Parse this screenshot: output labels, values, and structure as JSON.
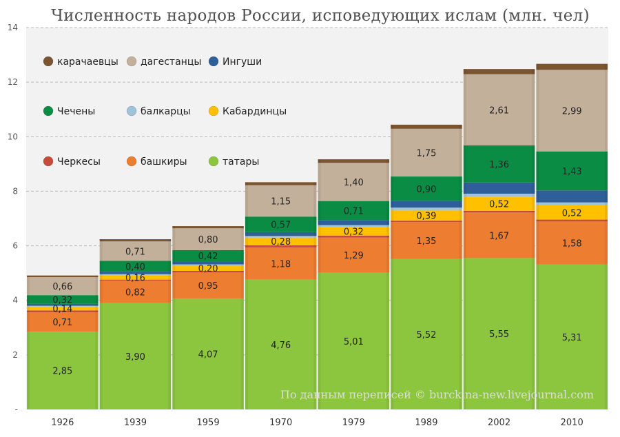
{
  "chart_data": {
    "type": "bar",
    "stacked": true,
    "title": "Численность народов России, исповедующих ислам (млн. чел)",
    "categories": [
      "1926",
      "1939",
      "1959",
      "1970",
      "1979",
      "1989",
      "2002",
      "2010"
    ],
    "ylim": [
      0,
      14
    ],
    "yticks": [
      "-",
      "2",
      "4",
      "6",
      "8",
      "10",
      "12",
      "14"
    ],
    "ytick_values": [
      0,
      2,
      4,
      6,
      8,
      10,
      12,
      14
    ],
    "grid": "horizontal dashed",
    "legend_position": "top-left",
    "legend": [
      {
        "name": "карачаевцы",
        "color": "#7b5430"
      },
      {
        "name": "дагестанцы",
        "color": "#c3b09a"
      },
      {
        "name": "Ингуши",
        "color": "#2e5f99"
      },
      {
        "name": "Чечены",
        "color": "#0b8c45"
      },
      {
        "name": "балкарцы",
        "color": "#9fc3d9"
      },
      {
        "name": "Кабардинцы",
        "color": "#ffc000"
      },
      {
        "name": "Черкесы",
        "color": "#c84b3a"
      },
      {
        "name": "башкиры",
        "color": "#ed7d31"
      },
      {
        "name": "татары",
        "color": "#8cc63f"
      }
    ],
    "series": [
      {
        "name": "татары",
        "color": "#8cc63f",
        "values": [
          2.85,
          3.9,
          4.07,
          4.76,
          5.01,
          5.52,
          5.55,
          5.31
        ],
        "labels": [
          "2,85",
          "3,90",
          "4,07",
          "4,76",
          "5,01",
          "5,52",
          "5,55",
          "5,31"
        ]
      },
      {
        "name": "башкиры",
        "color": "#ed7d31",
        "values": [
          0.71,
          0.82,
          0.95,
          1.18,
          1.29,
          1.35,
          1.67,
          1.58
        ],
        "labels": [
          "0,71",
          "0,82",
          "0,95",
          "1,18",
          "1,29",
          "1,35",
          "1,67",
          "1,58"
        ]
      },
      {
        "name": "Черкесы",
        "color": "#c84b3a",
        "values": [
          0.07,
          0.04,
          0.06,
          0.08,
          0.07,
          0.05,
          0.06,
          0.07
        ],
        "labels": [
          "",
          "",
          "",
          "",
          "",
          "",
          "",
          ""
        ]
      },
      {
        "name": "Кабардинцы",
        "color": "#ffc000",
        "values": [
          0.14,
          0.16,
          0.2,
          0.28,
          0.32,
          0.39,
          0.52,
          0.52
        ],
        "labels": [
          "0,14",
          "0,16",
          "0,20",
          "0,28",
          "0,32",
          "0,39",
          "0,52",
          "0,52"
        ]
      },
      {
        "name": "балкарцы",
        "color": "#9fc3d9",
        "values": [
          0.03,
          0.04,
          0.04,
          0.06,
          0.07,
          0.09,
          0.11,
          0.11
        ],
        "labels": [
          "",
          "",
          "",
          "",
          "",
          "",
          "",
          ""
        ]
      },
      {
        "name": "Ингуши",
        "color": "#2e5f99",
        "values": [
          0.07,
          0.09,
          0.1,
          0.14,
          0.17,
          0.24,
          0.41,
          0.44
        ],
        "labels": [
          "",
          "",
          "",
          "",
          "",
          "",
          "",
          ""
        ]
      },
      {
        "name": "Чечены",
        "color": "#0b8c45",
        "values": [
          0.32,
          0.4,
          0.42,
          0.57,
          0.71,
          0.9,
          1.36,
          1.43
        ],
        "labels": [
          "0,32",
          "0,40",
          "0,42",
          "0,57",
          "0,71",
          "0,90",
          "1,36",
          "1,43"
        ]
      },
      {
        "name": "дагестанцы",
        "color": "#c3b09a",
        "values": [
          0.66,
          0.71,
          0.8,
          1.15,
          1.4,
          1.75,
          2.61,
          2.99
        ],
        "labels": [
          "0,66",
          "0,71",
          "0,80",
          "1,15",
          "1,40",
          "1,75",
          "2,61",
          "2,99"
        ]
      },
      {
        "name": "карачаевцы",
        "color": "#7b5430",
        "values": [
          0.06,
          0.08,
          0.08,
          0.11,
          0.13,
          0.15,
          0.19,
          0.22
        ],
        "labels": [
          "",
          "",
          "",
          "",
          "",
          "",
          "",
          ""
        ]
      }
    ],
    "watermark": "По данным переписей © burckina-new.livejournal.com"
  }
}
